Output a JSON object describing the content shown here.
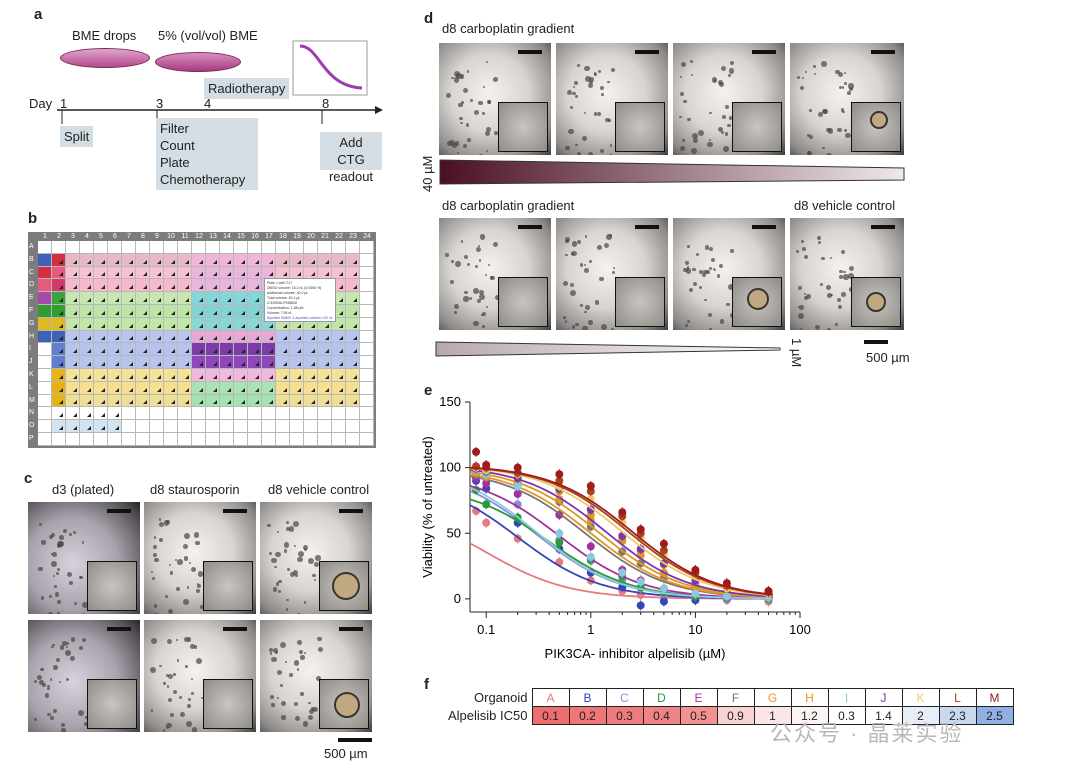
{
  "panel_a": {
    "label": "a",
    "bme_drops": "BME drops",
    "bme_5": "5% (vol/vol) BME",
    "radiotherapy": "Radiotherapy",
    "day_label": "Day",
    "days": [
      "1",
      "3",
      "4",
      "8"
    ],
    "split": "Split",
    "steps": [
      "Filter",
      "Count",
      "Plate",
      "Chemotherapy"
    ],
    "readout": [
      "Add CTG",
      "readout"
    ]
  },
  "panel_b": {
    "label": "b",
    "columns": [
      "1",
      "2",
      "3",
      "4",
      "5",
      "6",
      "7",
      "8",
      "9",
      "10",
      "11",
      "12",
      "13",
      "14",
      "15",
      "16",
      "17",
      "18",
      "19",
      "20",
      "21",
      "22",
      "23",
      "24"
    ],
    "rows": [
      "A",
      "B",
      "C",
      "D",
      "E",
      "F",
      "G",
      "H",
      "I",
      "J",
      "K",
      "L",
      "M",
      "N",
      "O",
      "P"
    ],
    "popup_lines": [
      "Plate 1 well C17",
      "DMSO volume: 15.2 nL (0.0050 %)",
      "Additional volume: 40.0 µL",
      "Total volume: 40.1 µL",
      "Z-920546-F998806",
      "Concentration: 1.88 µM",
      "Volume: 7.55 nL",
      "Alpelisib 5MMX Z-alpelisib-carbam-100 nL"
    ]
  },
  "panel_c": {
    "label": "c",
    "columns": [
      "d3 (plated)",
      "d8 staurosporin",
      "d8 vehicle control"
    ],
    "scalebar": "500 µm"
  },
  "panel_d": {
    "label": "d",
    "top_title": "d8 carboplatin gradient",
    "top_conc": "40 µM",
    "bottom_title": "d8 carboplatin gradient",
    "vehicle": "d8 vehicle control",
    "bottom_conc": "1 µM",
    "scalebar": "500 µm"
  },
  "panel_e": {
    "label": "e",
    "ylabel": "Viability (% of untreated)",
    "xlabel": "PIK3CA- inhibitor alpelisib (µM)",
    "yticks": [
      "0",
      "50",
      "100",
      "150"
    ],
    "xticks": [
      "0.1",
      "1",
      "10",
      "100"
    ]
  },
  "panel_f": {
    "label": "f",
    "header_label": "Organoid",
    "row_label": "Alpelisib IC50",
    "organoids": [
      {
        "id": "A",
        "ic50": "0.1",
        "color": "#e8797c",
        "bg": "#ee6e6e"
      },
      {
        "id": "B",
        "ic50": "0.2",
        "color": "#3446b8",
        "bg": "#ee7676"
      },
      {
        "id": "C",
        "ic50": "0.3",
        "color": "#8c8fd6",
        "bg": "#ef7c7c"
      },
      {
        "id": "D",
        "ic50": "0.4",
        "color": "#2a9a3b",
        "bg": "#f08484"
      },
      {
        "id": "E",
        "ic50": "0.5",
        "color": "#a0329a",
        "bg": "#f29292"
      },
      {
        "id": "F",
        "ic50": "0.9",
        "color": "#777777",
        "bg": "#f9d2d2"
      },
      {
        "id": "G",
        "ic50": "1",
        "color": "#e5942c",
        "bg": "#fbe6e6"
      },
      {
        "id": "H",
        "ic50": "1.2",
        "color": "#d99a1a",
        "bg": "#fdf3f3"
      },
      {
        "id": "I",
        "ic50": "0.3",
        "color": "#8bc9df",
        "bg": "#ffffff"
      },
      {
        "id": "J",
        "ic50": "1.4",
        "color": "#7a36b0",
        "bg": "#ffffff"
      },
      {
        "id": "K",
        "ic50": "2",
        "color": "#f2c96a",
        "bg": "#e8eef8"
      },
      {
        "id": "L",
        "ic50": "2.3",
        "color": "#a6441b",
        "bg": "#c9d7ef"
      },
      {
        "id": "M",
        "ic50": "2.5",
        "color": "#a01b1b",
        "bg": "#8fb0e3"
      }
    ]
  },
  "watermark": "公众号 · 晶莱实验",
  "chart_data": {
    "type": "scatter",
    "title": "",
    "xlabel": "PIK3CA- inhibitor alpelisib (µM)",
    "ylabel": "Viability (% of untreated)",
    "xscale": "log",
    "xlim": [
      0.07,
      100
    ],
    "ylim": [
      -10,
      150
    ],
    "x": [
      0.08,
      0.1,
      0.2,
      0.5,
      1,
      2,
      3,
      5,
      10,
      20,
      50
    ],
    "series": [
      {
        "name": "A",
        "color": "#e8797c",
        "ic50": 0.1,
        "values": [
          67,
          58,
          46,
          28,
          14,
          6,
          3,
          1,
          0,
          -1,
          -2
        ]
      },
      {
        "name": "B",
        "color": "#3446b8",
        "ic50": 0.2,
        "values": [
          90,
          84,
          58,
          38,
          20,
          9,
          -5,
          -2,
          -1,
          0,
          0
        ]
      },
      {
        "name": "C",
        "color": "#8c8fd6",
        "ic50": 0.3,
        "values": [
          95,
          92,
          72,
          45,
          29,
          14,
          8,
          4,
          2,
          0,
          0
        ]
      },
      {
        "name": "D",
        "color": "#2a9a3b",
        "ic50": 0.4,
        "values": [
          83,
          72,
          62,
          43,
          30,
          17,
          9,
          5,
          2,
          1,
          0
        ]
      },
      {
        "name": "E",
        "color": "#a0329a",
        "ic50": 0.5,
        "values": [
          92,
          88,
          80,
          64,
          40,
          22,
          14,
          8,
          4,
          2,
          1
        ]
      },
      {
        "name": "F",
        "color": "#777777",
        "ic50": 0.9,
        "values": [
          95,
          93,
          88,
          74,
          55,
          36,
          27,
          16,
          9,
          4,
          2
        ]
      },
      {
        "name": "G",
        "color": "#e5942c",
        "ic50": 1,
        "values": [
          96,
          93,
          88,
          76,
          60,
          44,
          33,
          20,
          10,
          5,
          2
        ]
      },
      {
        "name": "H",
        "color": "#d99a1a",
        "ic50": 1.2,
        "values": [
          97,
          95,
          90,
          82,
          64,
          46,
          36,
          26,
          12,
          6,
          3
        ]
      },
      {
        "name": "I",
        "color": "#8bc9df",
        "ic50": 0.3,
        "values": [
          98,
          95,
          86,
          50,
          32,
          20,
          13,
          8,
          4,
          2,
          1
        ]
      },
      {
        "name": "J",
        "color": "#7a36b0",
        "ic50": 1.4,
        "values": [
          99,
          97,
          92,
          84,
          68,
          48,
          38,
          27,
          14,
          8,
          4
        ]
      },
      {
        "name": "K",
        "color": "#f2c96a",
        "ic50": 2,
        "values": [
          100,
          98,
          95,
          86,
          76,
          58,
          46,
          34,
          18,
          8,
          4
        ]
      },
      {
        "name": "L",
        "color": "#a6441b",
        "ic50": 2.3,
        "values": [
          101,
          100,
          96,
          90,
          82,
          63,
          50,
          37,
          20,
          10,
          5
        ]
      },
      {
        "name": "M",
        "color": "#a01b1b",
        "ic50": 2.5,
        "values": [
          112,
          102,
          100,
          95,
          86,
          66,
          53,
          42,
          22,
          12,
          6
        ]
      }
    ]
  }
}
